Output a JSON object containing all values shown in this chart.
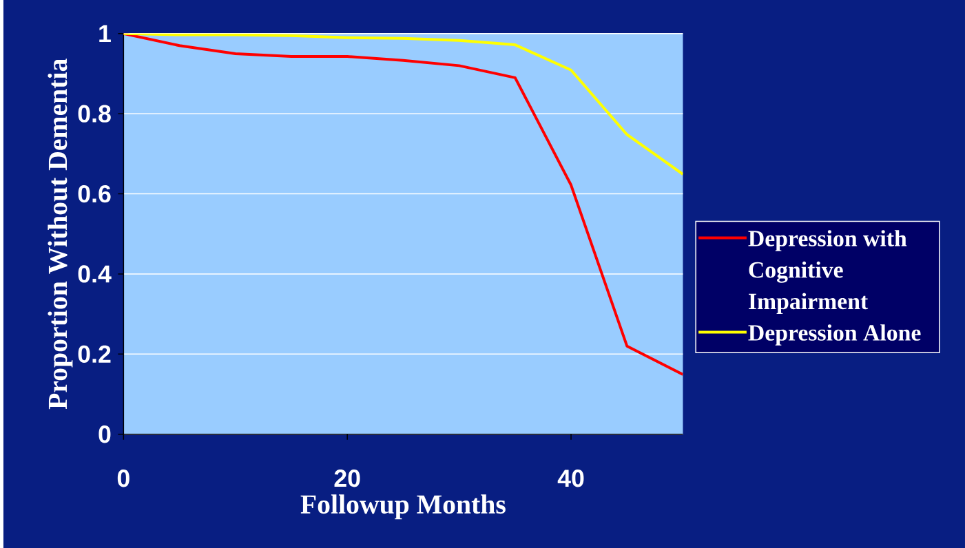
{
  "chart_data": {
    "type": "line",
    "xlabel": "Followup Months",
    "ylabel": "Proportion Without Dementia",
    "x": [
      0,
      5,
      10,
      15,
      20,
      25,
      30,
      35,
      40,
      45,
      50
    ],
    "series": [
      {
        "name": "Depression with Cognitive Impairment",
        "color": "#ff0000",
        "values": [
          1,
          0.97,
          0.95,
          0.943,
          0.943,
          0.933,
          0.92,
          0.89,
          0.622,
          0.22,
          0.149
        ]
      },
      {
        "name": "Depression Alone",
        "color": "#ffff00",
        "values": [
          1,
          0.997,
          0.997,
          0.995,
          0.99,
          0.988,
          0.983,
          0.972,
          0.909,
          0.748,
          0.649
        ]
      }
    ],
    "xlim": [
      0,
      50
    ],
    "ylim": [
      0,
      1
    ],
    "xticks": [
      0,
      20,
      40
    ],
    "yticks": [
      0,
      0.2,
      0.4,
      0.6,
      0.8,
      1
    ],
    "grid": "y",
    "legend": "right",
    "marker": "none",
    "line_style": "solid"
  }
}
